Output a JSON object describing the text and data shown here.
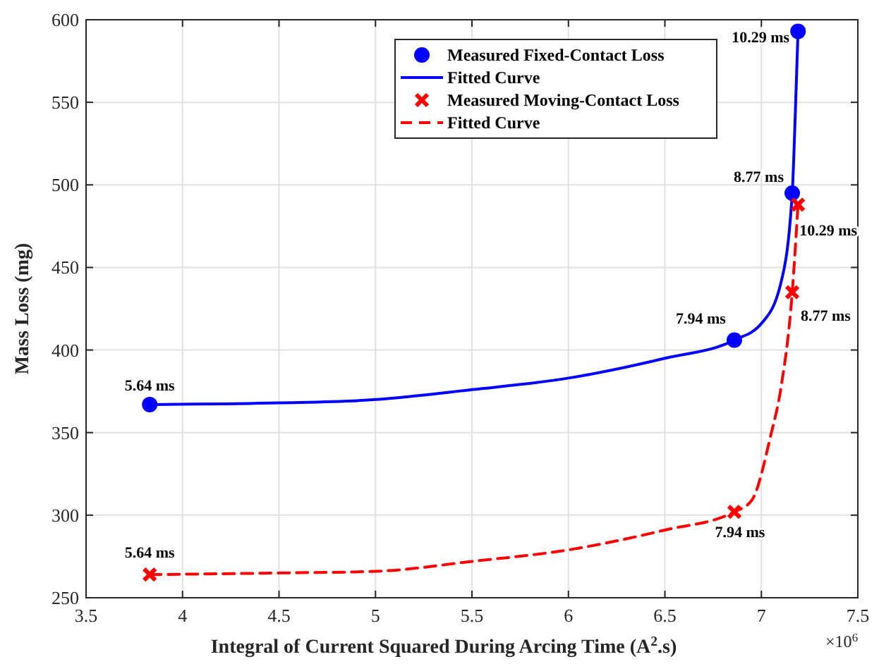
{
  "chart_data": {
    "type": "scatter",
    "xlabel": "Integral of Current Squared During Arcing Time (A$^{2}$.s)",
    "ylabel": "Mass Loss (mg)",
    "xlim": [
      3.5,
      7.5
    ],
    "xticks": [
      3.5,
      4,
      4.5,
      5,
      5.5,
      6,
      6.5,
      7,
      7.5
    ],
    "ylim": [
      250,
      600
    ],
    "yticks": [
      250,
      300,
      350,
      400,
      450,
      500,
      550,
      600
    ],
    "grid": true,
    "legend": "top right",
    "series": [
      {
        "name": "Measured Fixed-Contact Loss",
        "marker": "circle",
        "color": "#0000ff",
        "x": [
          3.83,
          6.86,
          7.16,
          7.19
        ],
        "values": [
          367,
          406,
          495,
          593
        ]
      },
      {
        "name": "Fitted Curve",
        "type": "line",
        "marker": "none",
        "line_style": "solid",
        "color": "#0000ff",
        "x": [
          3.83,
          4.5,
          5,
          5.5,
          6,
          6.5,
          6.86,
          7.0,
          7.1,
          7.16,
          7.175,
          7.19
        ],
        "values": [
          367,
          368,
          370,
          376,
          383,
          395,
          406,
          416,
          440,
          495,
          540,
          593
        ]
      },
      {
        "name": "Measured Moving-Contact Loss",
        "marker": "cross",
        "color": "#ff0000",
        "x": [
          3.83,
          6.86,
          7.16,
          7.19
        ],
        "values": [
          264,
          302,
          435,
          488
        ]
      },
      {
        "name": "Fitted Curve",
        "type": "line",
        "marker": "none",
        "line_style": "dashed",
        "color": "#ff0000",
        "x": [
          3.83,
          4.5,
          5,
          5.5,
          6,
          6.5,
          6.86,
          6.95,
          7.05,
          7.1,
          7.16,
          7.19
        ],
        "values": [
          264,
          265,
          266,
          272,
          279,
          291,
          302,
          309,
          349,
          376,
          435,
          488
        ]
      }
    ],
    "annotations": [
      {
        "text": "5.64 ms",
        "x": 3.83,
        "y": 367
      },
      {
        "text": "7.94 ms",
        "x": 6.86,
        "y": 406
      },
      {
        "text": "8.77 ms",
        "x": 7.16,
        "y": 495
      },
      {
        "text": "10.29 ms",
        "x": 7.19,
        "y": 593
      },
      {
        "text": "5.64 ms",
        "x": 3.83,
        "y": 264
      },
      {
        "text": "7.94 ms",
        "x": 6.86,
        "y": 302
      },
      {
        "text": "8.77 ms",
        "x": 7.16,
        "y": 435
      },
      {
        "text": "10.29 ms",
        "x": 7.19,
        "y": 488
      },
      "×10$^{6}$"
    ]
  }
}
